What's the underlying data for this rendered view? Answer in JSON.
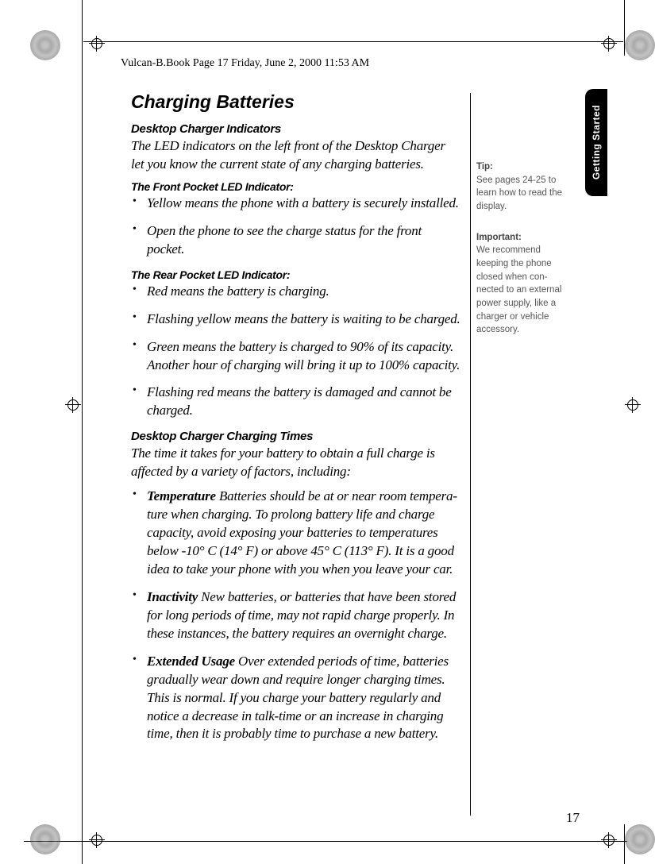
{
  "header": {
    "text": "Vulcan-B.Book  Page 17  Friday, June 2, 2000  11:53 AM"
  },
  "main": {
    "title": "Charging Batteries",
    "section1": {
      "heading": "Desktop Charger Indicators",
      "intro": "The LED indicators on the left front of the Desktop Charger let you know the current state of any charging batteries."
    },
    "section2": {
      "heading": "The Front Pocket LED Indicator:",
      "items": [
        "Yellow means the phone with a battery is securely installed.",
        "Open the phone to see the charge status for the front pocket."
      ]
    },
    "section3": {
      "heading": "The Rear Pocket LED Indicator:",
      "items": [
        "Red means the battery is charging.",
        "Flashing yellow means the battery is waiting to be charged.",
        "Green means the battery is charged to 90% of its capacity. Another hour of charging will bring it up to 100% capacity.",
        "Flashing red means the battery is damaged and cannot be charged."
      ]
    },
    "section4": {
      "heading": "Desktop Charger Charging Times",
      "intro": "The time it takes for your battery to obtain a full charge is affected by a variety of factors, including:",
      "items": [
        {
          "label": "Temperature",
          "text": " Batteries should be at or near room tempera-ture when charging. To prolong battery life and charge capacity, avoid exposing your batteries to temperatures below -10° C (14° F) or above 45° C (113° F). It is a good idea to take your phone with you when you leave your car."
        },
        {
          "label": "Inactivity",
          "text": " New batteries, or batteries that have been stored for long periods of time, may not rapid charge properly. In these instances, the battery requires an overnight charge."
        },
        {
          "label": "Extended Usage",
          "text": " Over extended periods of time, batteries gradually wear down and require longer charging times. This is normal. If you charge your battery regularly and notice a decrease in talk-time or an increase in charging time, then it is probably time to purchase a new battery."
        }
      ]
    }
  },
  "sidebar": {
    "tip": {
      "title": "Tip:",
      "text": "See pages 24-25 to learn how to read the display."
    },
    "important": {
      "title": "Important:",
      "text": "We recommend keeping the phone closed when con-nected to an external power supply, like a charger or vehicle accessory."
    }
  },
  "tab": {
    "label": "Getting Started"
  },
  "page": {
    "number": "17"
  }
}
